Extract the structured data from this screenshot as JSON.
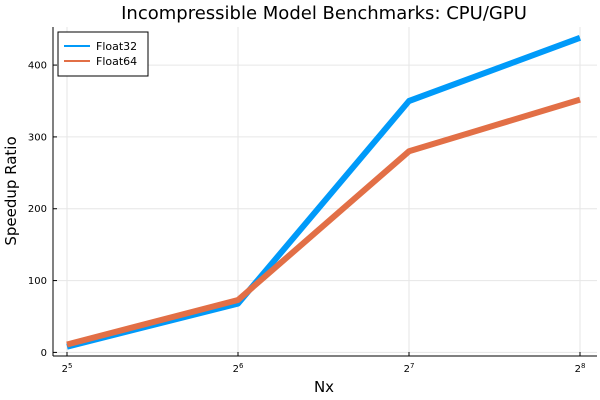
{
  "chart_data": {
    "type": "line",
    "title": "Incompressible Model Benchmarks: CPU/GPU",
    "xlabel": "Nx",
    "ylabel": "Speedup Ratio",
    "x_scale": "log2",
    "x": [
      32,
      64,
      128,
      256
    ],
    "x_ticks": [
      {
        "base": "2",
        "exp": "5"
      },
      {
        "base": "2",
        "exp": "6"
      },
      {
        "base": "2",
        "exp": "7"
      },
      {
        "base": "2",
        "exp": "8"
      }
    ],
    "y_ticks": [
      "0",
      "100",
      "200",
      "300",
      "400"
    ],
    "ylim": [
      -5,
      453
    ],
    "grid": true,
    "legend_position": "top-left",
    "series": [
      {
        "name": "Float32",
        "color": "#009af9",
        "values": [
          8,
          68,
          350,
          438
        ]
      },
      {
        "name": "Float64",
        "color": "#e26f46",
        "values": [
          11,
          73,
          280,
          352
        ]
      }
    ]
  }
}
